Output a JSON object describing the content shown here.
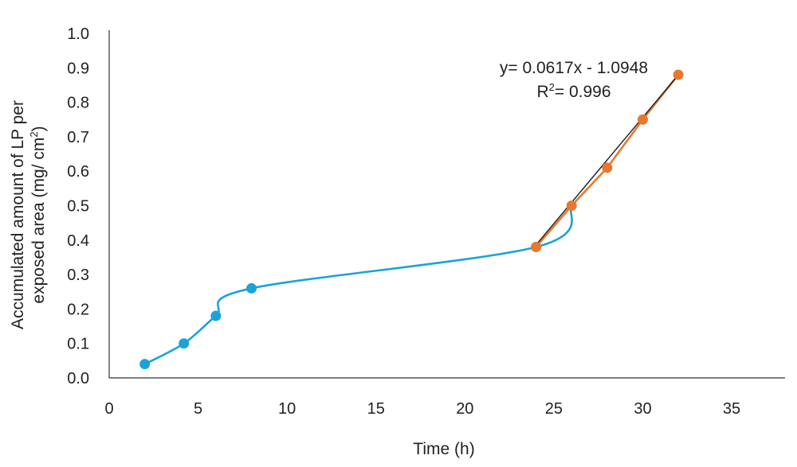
{
  "chart_data": {
    "type": "line",
    "title": "",
    "xlabel": "Time (h)",
    "ylabel_line1": "Accumulated amount of LP per",
    "ylabel_line2_text": "exposed area (mg/ cm",
    "ylabel_line2_sup": "2",
    "ylabel_line2_close": ")",
    "xlim": [
      0,
      38
    ],
    "ylim": [
      0.0,
      1.0
    ],
    "x_ticks": [
      0,
      5,
      10,
      15,
      20,
      25,
      30,
      35
    ],
    "x_tick_labels": [
      "0",
      "5",
      "10",
      "15",
      "20",
      "25",
      "30",
      "35"
    ],
    "y_ticks": [
      0.0,
      0.1,
      0.2,
      0.3,
      0.4,
      0.5,
      0.6,
      0.7,
      0.8,
      0.9,
      1.0
    ],
    "y_tick_labels": [
      "0.0",
      "0.1",
      "0.2",
      "0.3",
      "0.4",
      "0.5",
      "0.6",
      "0.7",
      "0.8",
      "0.9",
      "1.0"
    ],
    "grid": false,
    "series": [
      {
        "color": "#1aa3d9",
        "smooth": true,
        "x": [
          2,
          4.2,
          6,
          8,
          24,
          26
        ],
        "y": [
          0.04,
          0.1,
          0.18,
          0.26,
          0.38,
          0.5
        ]
      },
      {
        "color": "#e8782f",
        "smooth": false,
        "x": [
          24,
          26,
          28,
          30,
          32
        ],
        "y": [
          0.38,
          0.5,
          0.61,
          0.75,
          0.88
        ]
      }
    ],
    "trendline": {
      "color": "#1a1a1a",
      "slope": 0.0617,
      "intercept": -1.0948,
      "x_range": [
        24,
        32
      ]
    },
    "annotations": {
      "equation": "y= 0.0617x - 1.0948",
      "r2_prefix": "R",
      "r2_sup": "2",
      "r2_value": "= 0.996"
    }
  }
}
